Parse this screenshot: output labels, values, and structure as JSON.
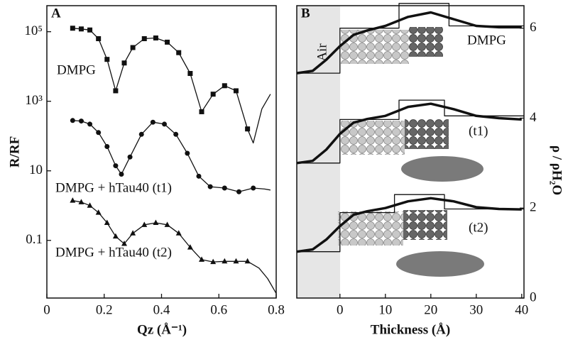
{
  "chart_data": [
    {
      "type": "line",
      "panel": "A",
      "xlabel": "Qz (Å⁻¹)",
      "ylabel": "R/RF",
      "ylog": true,
      "xlim": [
        0,
        0.8
      ],
      "xticks": [
        0,
        0.2,
        0.4,
        0.6,
        0.8
      ],
      "ylim": [
        0.0022,
        560000
      ],
      "yticks": [
        {
          "value": 100000,
          "label": "10⁵"
        },
        {
          "value": 1000,
          "label": "10³"
        },
        10,
        0.1
      ],
      "series": [
        {
          "name": "DMPG",
          "color": "#111111",
          "marker": "square",
          "x": [
            0.09,
            0.12,
            0.15,
            0.18,
            0.21,
            0.24,
            0.27,
            0.3,
            0.34,
            0.38,
            0.42,
            0.46,
            0.5,
            0.54,
            0.58,
            0.62,
            0.66,
            0.7
          ],
          "values": [
            126000,
            120000,
            112000,
            63000,
            16000,
            2000,
            12600,
            35000,
            63000,
            66000,
            50000,
            25000,
            6300,
            500,
            1600,
            2800,
            2000,
            160
          ]
        },
        {
          "color": "#111111",
          "x": [
            0.09,
            0.12,
            0.15,
            0.18,
            0.21,
            0.24,
            0.27,
            0.3,
            0.34,
            0.38,
            0.42,
            0.46,
            0.5,
            0.54,
            0.58,
            0.62,
            0.66,
            0.7,
            0.72,
            0.75,
            0.78
          ],
          "values": [
            126000,
            120000,
            112000,
            63000,
            16000,
            2000,
            12600,
            35000,
            63000,
            66000,
            50000,
            25000,
            6300,
            500,
            1600,
            2800,
            2000,
            160,
            63,
            600,
            1600
          ]
        },
        {
          "name": "DMPG + hTau40 (t1)",
          "color": "#111111",
          "marker": "circle",
          "x": [
            0.09,
            0.12,
            0.15,
            0.18,
            0.21,
            0.24,
            0.26,
            0.29,
            0.33,
            0.37,
            0.41,
            0.45,
            0.49,
            0.53,
            0.57,
            0.62,
            0.67,
            0.72
          ],
          "values": [
            280,
            270,
            220,
            126,
            50,
            14,
            8,
            25,
            112,
            250,
            220,
            112,
            32,
            7,
            3.5,
            3.2,
            2.5,
            3.2
          ]
        },
        {
          "color": "#111111",
          "x": [
            0.09,
            0.12,
            0.15,
            0.18,
            0.21,
            0.24,
            0.26,
            0.29,
            0.33,
            0.37,
            0.41,
            0.45,
            0.49,
            0.53,
            0.57,
            0.62,
            0.67,
            0.72,
            0.76,
            0.78
          ],
          "values": [
            280,
            270,
            220,
            126,
            50,
            14,
            8,
            25,
            112,
            250,
            220,
            112,
            32,
            7,
            3.5,
            3.2,
            2.5,
            3.2,
            3,
            2.8
          ]
        },
        {
          "name": "DMPG + hTau40 (t2)",
          "color": "#111111",
          "marker": "triangle",
          "x": [
            0.09,
            0.12,
            0.15,
            0.18,
            0.21,
            0.24,
            0.27,
            0.3,
            0.34,
            0.38,
            0.42,
            0.46,
            0.5,
            0.54,
            0.58,
            0.62,
            0.66,
            0.7
          ],
          "values": [
            1.4,
            1.26,
            1,
            0.63,
            0.32,
            0.13,
            0.08,
            0.16,
            0.28,
            0.32,
            0.28,
            0.16,
            0.063,
            0.028,
            0.024,
            0.025,
            0.025,
            0.025
          ]
        },
        {
          "color": "#111111",
          "x": [
            0.09,
            0.12,
            0.15,
            0.18,
            0.21,
            0.24,
            0.27,
            0.3,
            0.34,
            0.38,
            0.42,
            0.46,
            0.5,
            0.54,
            0.58,
            0.62,
            0.66,
            0.7,
            0.74,
            0.77,
            0.8
          ],
          "values": [
            1.4,
            1.26,
            1,
            0.63,
            0.32,
            0.13,
            0.08,
            0.16,
            0.28,
            0.32,
            0.28,
            0.16,
            0.063,
            0.028,
            0.024,
            0.025,
            0.025,
            0.025,
            0.016,
            0.008,
            0.003
          ]
        }
      ]
    },
    {
      "type": "line",
      "panel": "B",
      "xlabel": "Thickness (Å)",
      "y2label": "ρ / ρH₂O",
      "annotation": "Air",
      "xlim": [
        -9.5,
        40.5
      ],
      "xticks": [
        0,
        10,
        20,
        30,
        40
      ],
      "y2lim": [
        0,
        6.5
      ],
      "y2ticks": [
        0,
        2,
        4,
        6
      ],
      "series": [
        {
          "color": "#111111",
          "axis": "y2",
          "x": [
            -9.5,
            0,
            0,
            13,
            13,
            24,
            24,
            40.5
          ],
          "values": [
            5,
            5,
            6,
            6,
            6.55,
            6.55,
            6.05,
            6.05
          ]
        },
        {
          "name": "DMPG",
          "color": "#111111",
          "axis": "y2",
          "weight": "thick",
          "x": [
            -9.5,
            -6,
            -3,
            0,
            3,
            6,
            10,
            15,
            20,
            25,
            30,
            35,
            40
          ],
          "values": [
            5,
            5.05,
            5.3,
            5.6,
            5.85,
            5.95,
            6.05,
            6.25,
            6.35,
            6.2,
            6.05,
            6.02,
            6.02
          ]
        },
        {
          "color": "#111111",
          "axis": "y2",
          "x": [
            -9.5,
            0,
            0,
            13,
            13,
            23,
            23,
            40.5
          ],
          "values": [
            3,
            3,
            3.97,
            3.97,
            4.4,
            4.4,
            4.05,
            4.05
          ]
        },
        {
          "name": "(t1)",
          "color": "#111111",
          "axis": "y2",
          "weight": "thick",
          "x": [
            -9.5,
            -6,
            -3,
            0,
            3,
            6,
            10,
            15,
            20,
            25,
            30,
            35,
            40
          ],
          "values": [
            3,
            3.05,
            3.3,
            3.65,
            3.9,
            3.98,
            4.05,
            4.25,
            4.32,
            4.2,
            4.05,
            4.0,
            3.97
          ]
        },
        {
          "color": "#111111",
          "axis": "y2",
          "x": [
            -9.5,
            0,
            0,
            12,
            12,
            23,
            23,
            40.5
          ],
          "values": [
            1.03,
            1.03,
            1.9,
            1.9,
            2.3,
            2.3,
            1.98,
            1.98
          ]
        },
        {
          "name": "(t2)",
          "color": "#111111",
          "axis": "y2",
          "weight": "thick",
          "x": [
            -9.5,
            -6,
            -3,
            0,
            3,
            6,
            10,
            15,
            20,
            25,
            30,
            35,
            40
          ],
          "values": [
            1.03,
            1.08,
            1.3,
            1.6,
            1.85,
            1.93,
            2.0,
            2.15,
            2.22,
            2.15,
            2.02,
            1.98,
            1.97
          ]
        }
      ]
    }
  ]
}
